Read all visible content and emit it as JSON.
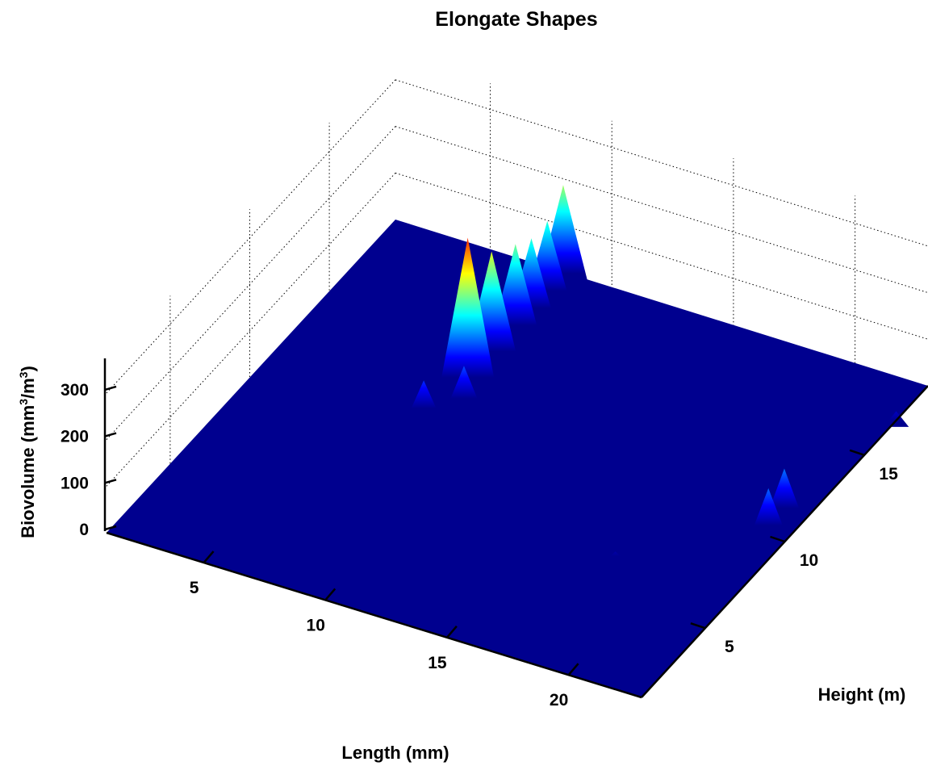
{
  "chart_data": {
    "type": "surface",
    "title": "Elongate Shapes",
    "xlabel": "Length (mm)",
    "ylabel": "Height (m)",
    "zlabel": "Biovolume (mm³/m³)",
    "zlabel_parts": {
      "base": "Biovolume (mm",
      "exp1": "3",
      "mid": "/m",
      "exp2": "3",
      "end": ")"
    },
    "x_ticks": [
      "5",
      "10",
      "15",
      "20"
    ],
    "y_ticks": [
      "5",
      "10",
      "15"
    ],
    "z_ticks": [
      "0",
      "100",
      "200",
      "300"
    ],
    "xlim": [
      1,
      23
    ],
    "ylim": [
      1,
      19
    ],
    "zlim": [
      0,
      360
    ],
    "colormap": "jet",
    "grid": true,
    "peaks": [
      {
        "x": 8,
        "y": 13,
        "z": 300
      },
      {
        "x": 8,
        "y": 14.5,
        "z": 215
      },
      {
        "x": 8,
        "y": 16,
        "z": 175
      },
      {
        "x": 8,
        "y": 17,
        "z": 150
      },
      {
        "x": 8,
        "y": 18,
        "z": 150
      },
      {
        "x": 8,
        "y": 19,
        "z": 190
      },
      {
        "x": 7.5,
        "y": 11,
        "z": 60
      },
      {
        "x": 8.5,
        "y": 12,
        "z": 70
      },
      {
        "x": 22,
        "y": 10.5,
        "z": 80
      },
      {
        "x": 22,
        "y": 11.5,
        "z": 85
      },
      {
        "x": 23,
        "y": 17,
        "z": 20
      },
      {
        "x": 18,
        "y": 7,
        "z": 10
      }
    ]
  }
}
